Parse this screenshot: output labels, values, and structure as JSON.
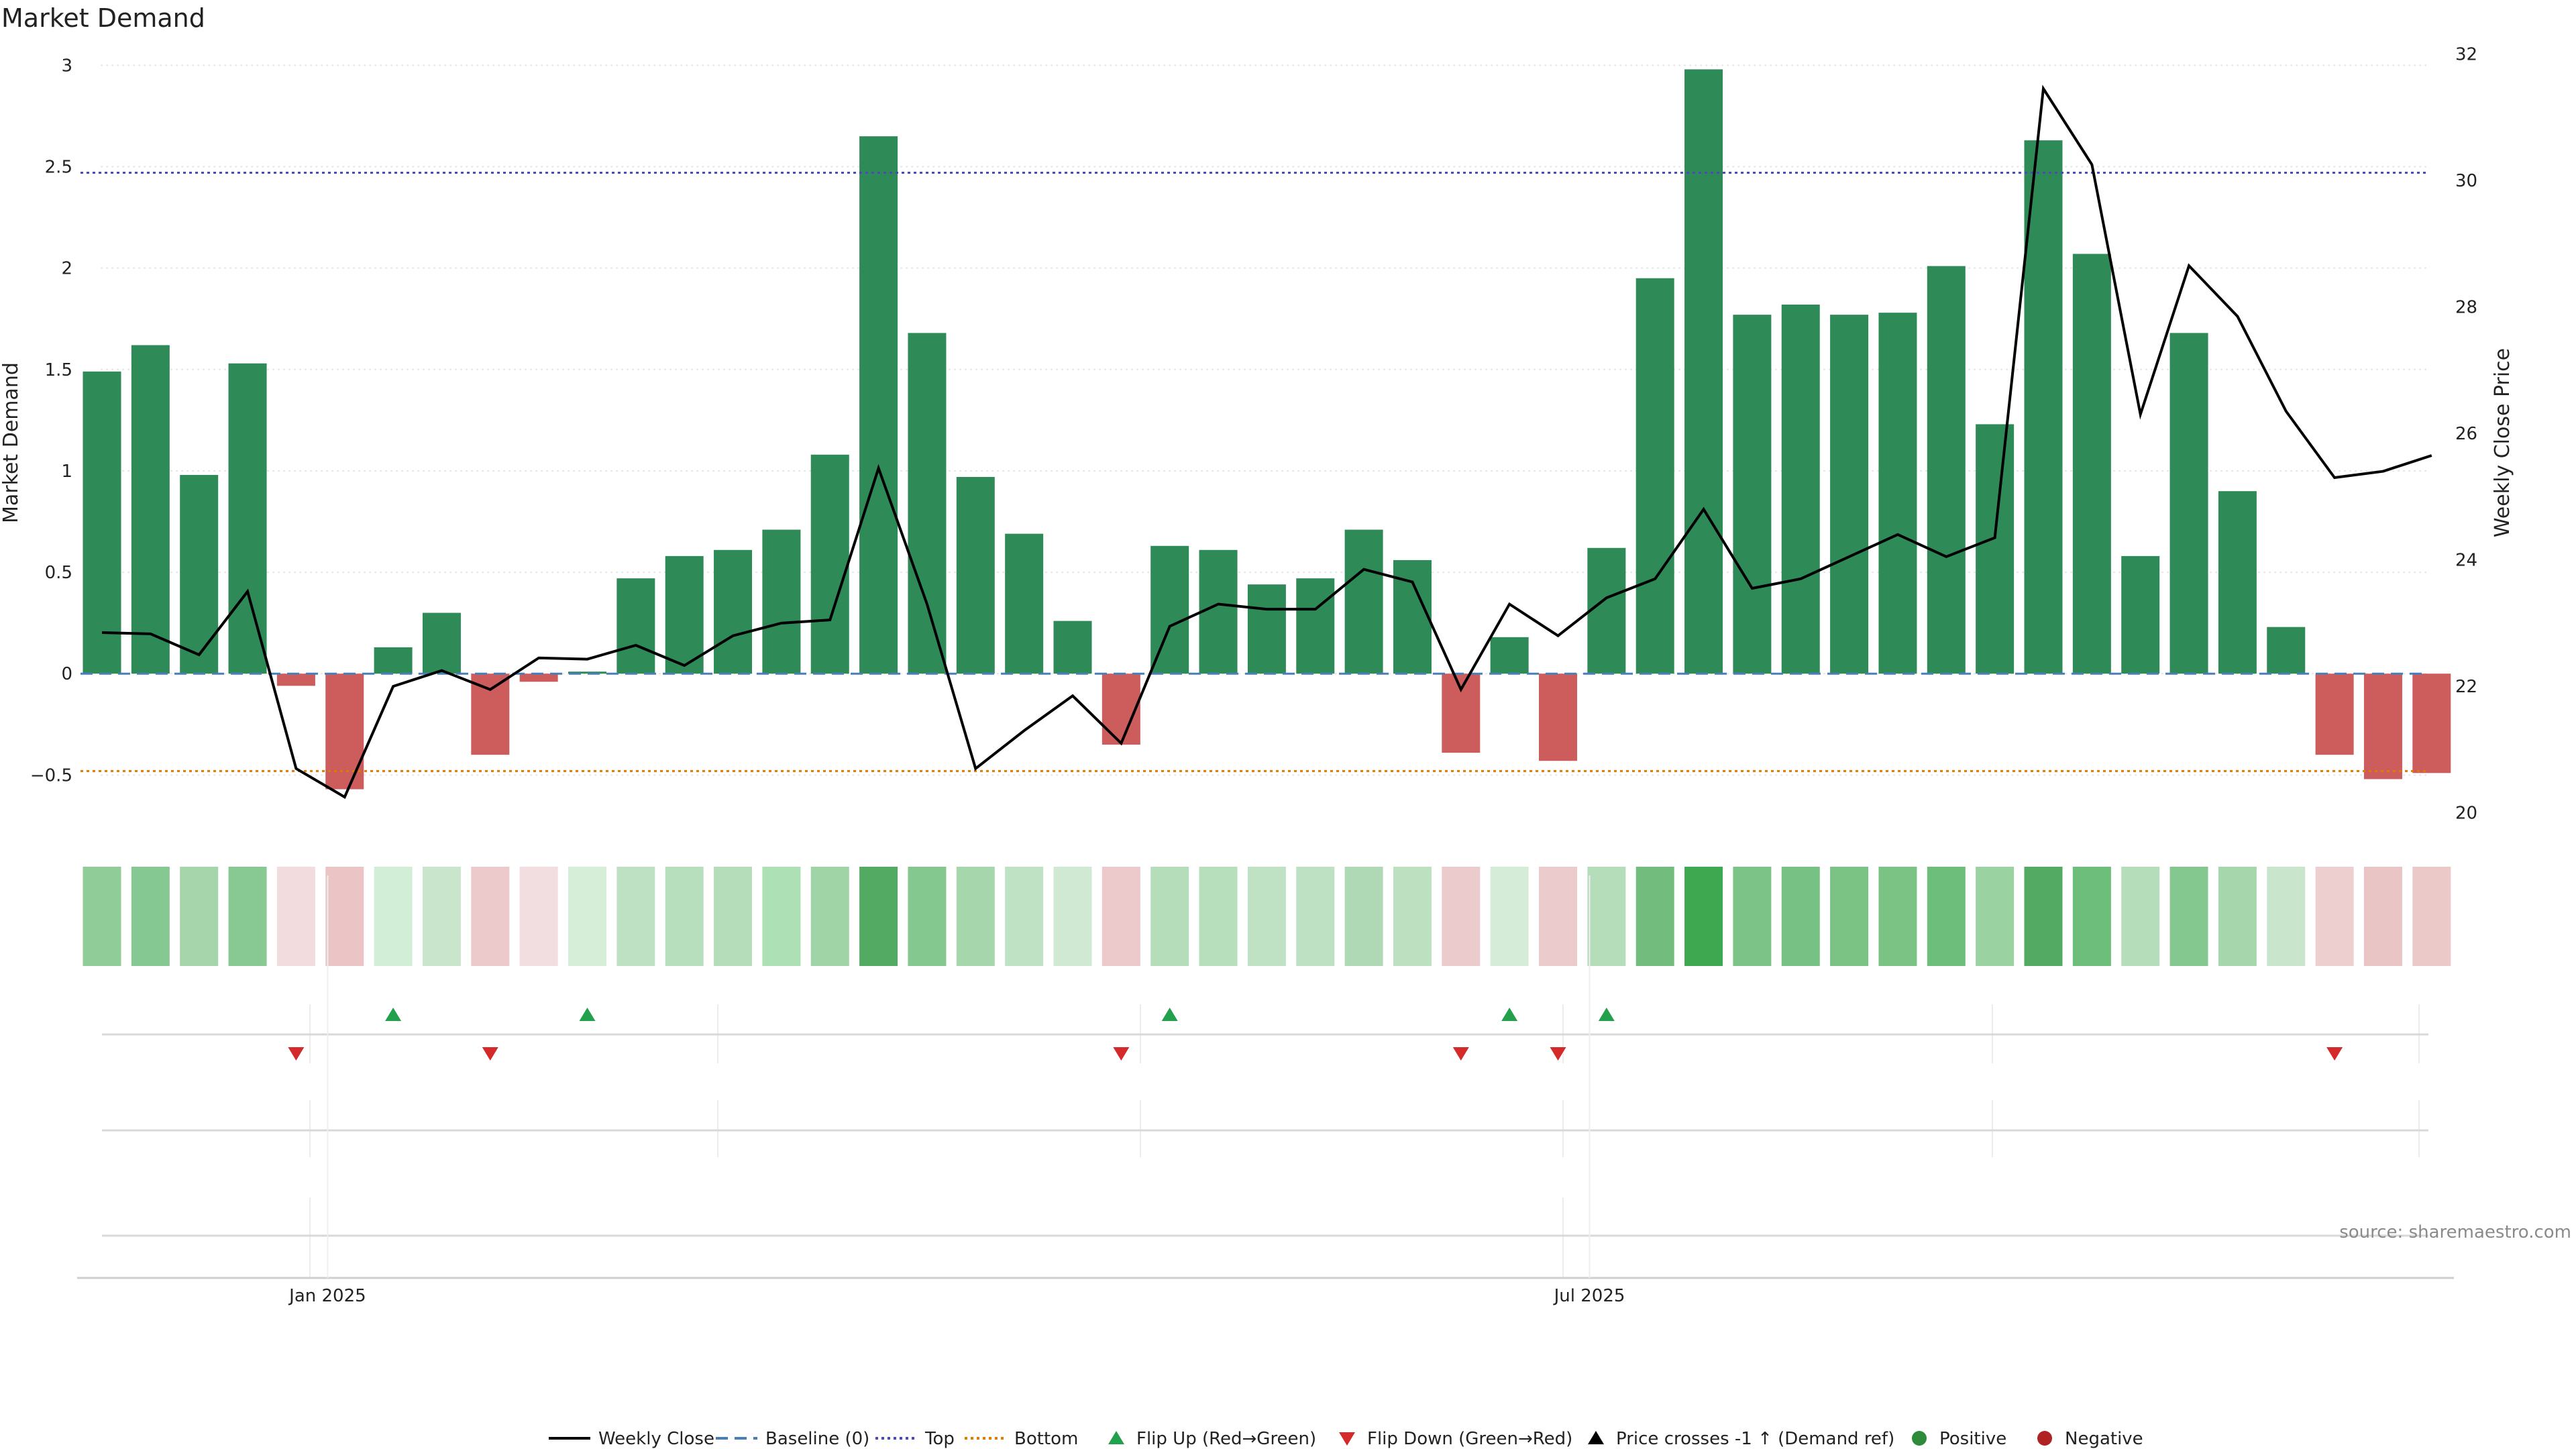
{
  "chart_data": {
    "type": "bar",
    "title": "Market Demand",
    "ylabel": "Market Demand",
    "y2label": "Weekly Close Price",
    "ylim": [
      -0.78,
      3.15
    ],
    "y2lim": [
      19.7,
      32.3
    ],
    "yticks": [
      "3",
      "2.5",
      "2",
      "1.5",
      "1",
      "0.5",
      "0",
      "−0.5"
    ],
    "ytick_values": [
      3,
      2.5,
      2,
      1.5,
      1,
      0.5,
      0,
      -0.5
    ],
    "y2ticks": [
      "32",
      "30",
      "28",
      "26",
      "24",
      "22",
      "20"
    ],
    "y2tick_values": [
      32,
      30,
      28,
      26,
      24,
      22,
      20
    ],
    "xticks": [
      "Jan 2025",
      "Jul 2025"
    ],
    "xtick_index": [
      4.65,
      30.65
    ],
    "reference_lines": {
      "top": 2.47,
      "bottom": -0.48,
      "baseline": 0
    },
    "series": [
      {
        "name": "Market Demand",
        "kind": "bar",
        "values": [
          1.49,
          1.62,
          0.98,
          1.53,
          -0.06,
          -0.57,
          0.13,
          0.3,
          -0.4,
          -0.04,
          0.01,
          0.47,
          0.58,
          0.61,
          0.71,
          1.08,
          2.65,
          1.68,
          0.97,
          0.69,
          0.26,
          -0.35,
          0.63,
          0.61,
          0.44,
          0.47,
          0.71,
          0.56,
          -0.39,
          0.18,
          -0.43,
          0.62,
          1.95,
          2.98,
          1.77,
          1.82,
          1.77,
          1.78,
          2.01,
          1.23,
          2.63,
          2.07,
          0.58,
          1.68,
          0.9,
          0.23,
          -0.4,
          -0.52,
          -0.49
        ]
      },
      {
        "name": "Weekly Close",
        "kind": "line",
        "values": [
          22.85,
          22.83,
          22.5,
          23.5,
          20.7,
          20.25,
          22.0,
          22.25,
          21.95,
          22.45,
          22.43,
          22.65,
          22.33,
          22.8,
          23.0,
          23.05,
          25.45,
          23.3,
          20.7,
          21.3,
          21.85,
          21.1,
          22.95,
          23.3,
          23.22,
          23.22,
          23.85,
          23.65,
          21.95,
          23.3,
          22.8,
          23.4,
          23.7,
          24.8,
          23.55,
          23.7,
          24.05,
          24.4,
          24.05,
          24.35,
          31.45,
          30.25,
          26.3,
          28.65,
          27.85,
          26.35,
          25.3,
          25.4,
          25.65
        ]
      }
    ],
    "heat_strip_colors": [
      "#8fcc97",
      "#86c891",
      "#a6d5ac",
      "#88c993",
      "#f2dcde",
      "#ebc5c6",
      "#d3eed6",
      "#c9e6cc",
      "#ecc9ca",
      "#f2dde0",
      "#d6eed8",
      "#bfe1c3",
      "#b8dfbd",
      "#b5ddba",
      "#ade0b4",
      "#a0d4a7",
      "#52aa63",
      "#84c78f",
      "#a6d7ac",
      "#bfe2c4",
      "#cfe9d2",
      "#ecc9ca",
      "#b5ddba",
      "#b8dfbc",
      "#c0e2c4",
      "#bfe1c3",
      "#afd9b5",
      "#bde0c1",
      "#eccbcc",
      "#d5edd8",
      "#ebcbcc",
      "#b5ddba",
      "#72bd7e",
      "#3da850",
      "#7cc387",
      "#78c184",
      "#7ac385",
      "#7ac385",
      "#6dbd7b",
      "#9ad2a2",
      "#52aa63",
      "#6dbd7b",
      "#b5ddba",
      "#84c78f",
      "#a6d7ac",
      "#c9e6cc",
      "#edcfd0",
      "#eac5c5",
      "#ebc9c9"
    ],
    "flip_up_index": [
      6,
      10,
      22,
      29,
      31
    ],
    "flip_down_index": [
      4,
      8,
      21,
      28,
      30,
      46
    ],
    "legend_position": "bottom-center"
  },
  "legend": [
    {
      "label": "Weekly Close",
      "symbol": "line",
      "color": "#000000"
    },
    {
      "label": "Baseline (0)",
      "symbol": "dashed",
      "color": "#4a7fb5"
    },
    {
      "label": "Top",
      "symbol": "dotted",
      "color": "#4b4bb8"
    },
    {
      "label": "Bottom",
      "symbol": "dotted",
      "color": "#e07b00"
    },
    {
      "label": "Flip Up (Red→Green)",
      "symbol": "triangle-up",
      "color": "#23a04c"
    },
    {
      "label": "Flip Down (Green→Red)",
      "symbol": "triangle-down",
      "color": "#d42a2a"
    },
    {
      "label": "Price crosses -1 ↑ (Demand ref)",
      "symbol": "triangle-up",
      "color": "#000000"
    },
    {
      "label": "Positive",
      "symbol": "circle",
      "color": "#2e8b3a"
    },
    {
      "label": "Negative",
      "symbol": "circle",
      "color": "#b22222"
    }
  ],
  "source": "source: sharemaestro.com",
  "colors": {
    "positive_bar": "#2e8b57",
    "negative_bar": "#cd5c5c",
    "line": "#000000"
  }
}
